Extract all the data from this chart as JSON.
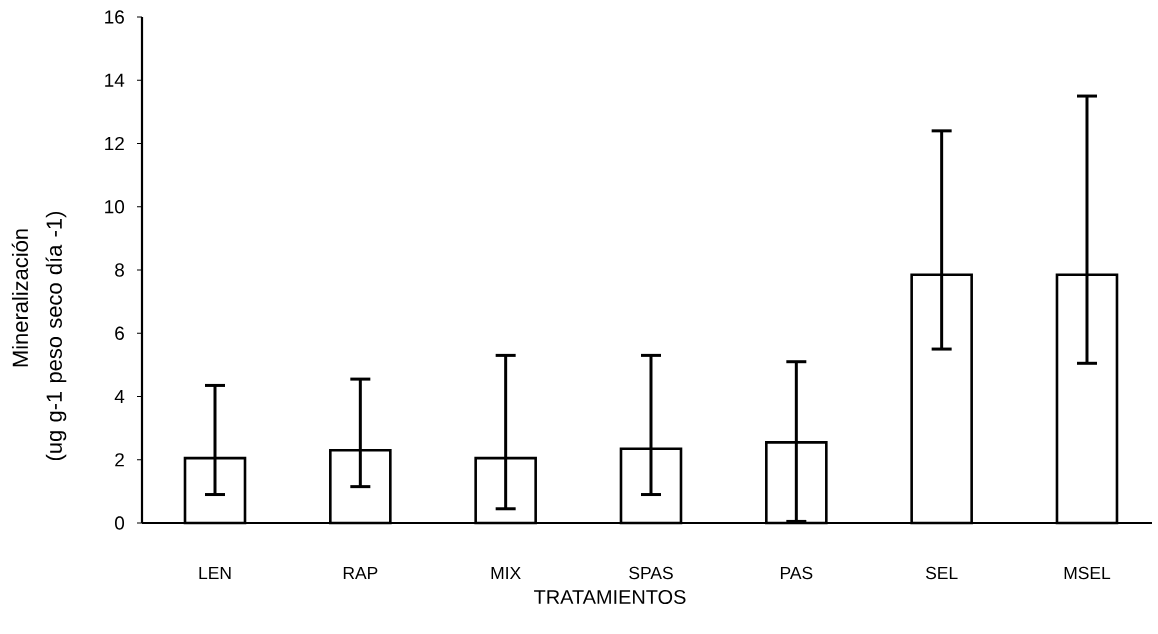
{
  "chart_data": {
    "type": "bar",
    "xlabel": "TRATAMIENTOS",
    "ylabel": "Mineralización (ug g-1 peso seco día -1)",
    "categories": [
      "LEN",
      "RAP",
      "MIX",
      "SPAS",
      "PAS",
      "SEL",
      "MSEL"
    ],
    "values": [
      2.05,
      2.3,
      2.05,
      2.35,
      2.55,
      7.85,
      7.85
    ],
    "errors": [
      [
        0.9,
        4.35
      ],
      [
        1.15,
        4.55
      ],
      [
        0.45,
        5.3
      ],
      [
        0.9,
        5.3
      ],
      [
        0.05,
        5.1
      ],
      [
        5.5,
        12.4
      ],
      [
        5.05,
        13.5
      ]
    ],
    "color": "#ffffff",
    "ylim": [
      0,
      16
    ],
    "yticks": [
      0,
      2,
      4,
      6,
      8,
      10,
      12,
      14,
      16
    ]
  }
}
